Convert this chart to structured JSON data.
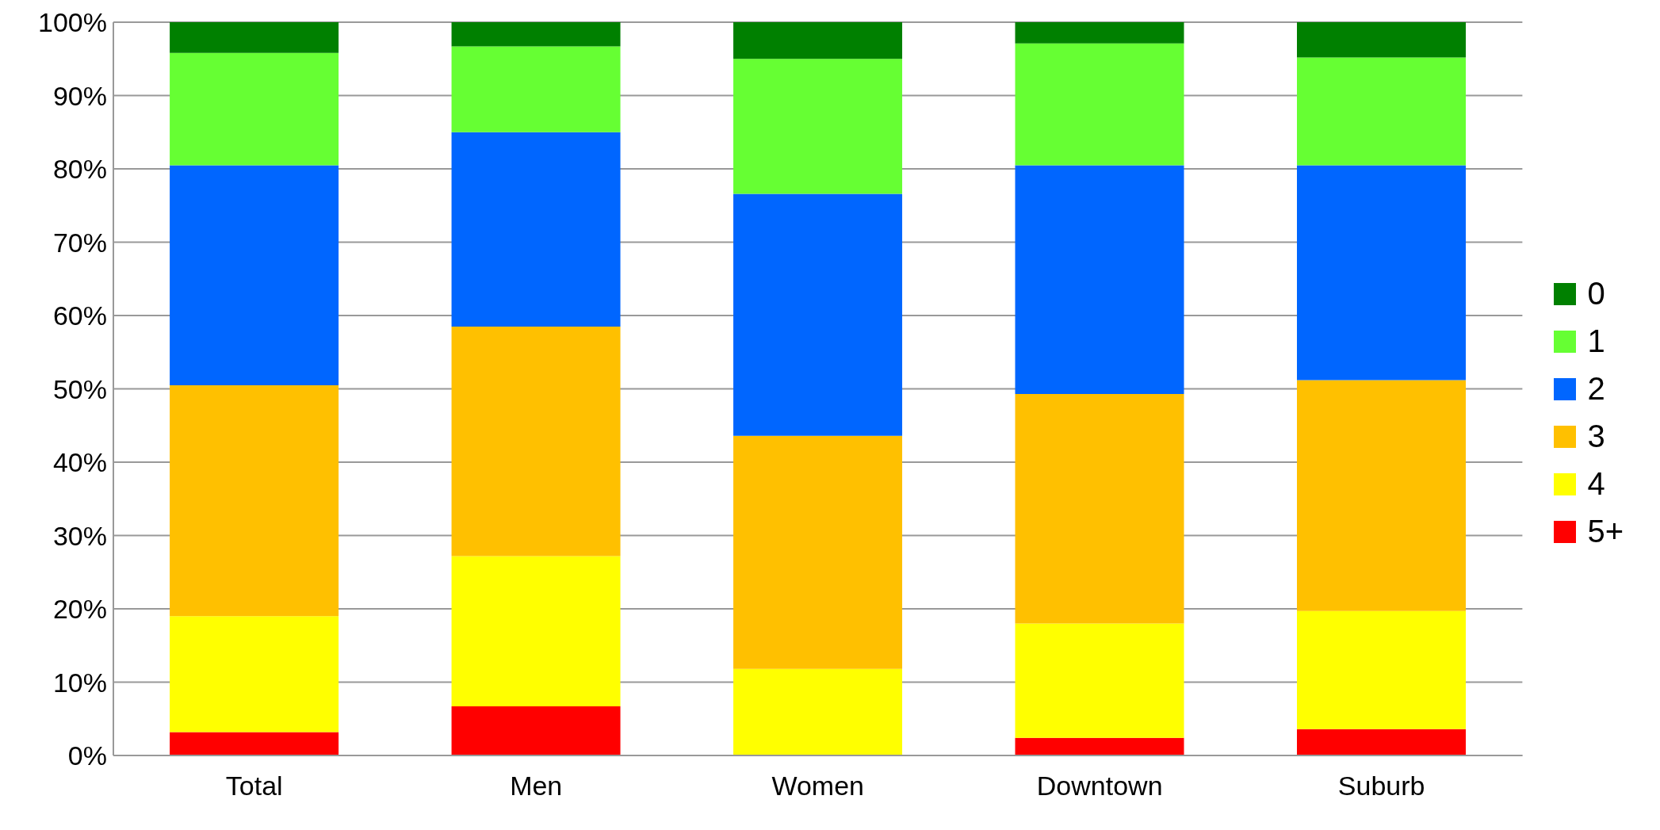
{
  "chart_data": {
    "type": "bar",
    "stacked": true,
    "categories": [
      "Total",
      "Men",
      "Women",
      "Downtown",
      "Suburb"
    ],
    "series": [
      {
        "name": "5+",
        "color": "#ff0000",
        "values": [
          3.2,
          6.7,
          0,
          2.4,
          3.6
        ]
      },
      {
        "name": "4",
        "color": "#ffff00",
        "values": [
          15.8,
          20.5,
          11.8,
          15.6,
          16.1
        ]
      },
      {
        "name": "3",
        "color": "#ffc000",
        "values": [
          31.5,
          31.3,
          31.8,
          31.3,
          31.5
        ]
      },
      {
        "name": "2",
        "color": "#0066ff",
        "values": [
          30.0,
          26.5,
          33.0,
          31.2,
          29.3
        ]
      },
      {
        "name": "1",
        "color": "#66ff33",
        "values": [
          15.3,
          11.7,
          18.4,
          16.6,
          14.7
        ]
      },
      {
        "name": "0",
        "color": "#008000",
        "values": [
          4.2,
          3.3,
          5.0,
          2.9,
          4.8
        ]
      }
    ],
    "ylim": [
      0,
      100
    ],
    "yticks": [
      {
        "value": 0,
        "label": "0%"
      },
      {
        "value": 10,
        "label": "10%"
      },
      {
        "value": 20,
        "label": "20%"
      },
      {
        "value": 30,
        "label": "30%"
      },
      {
        "value": 40,
        "label": "40%"
      },
      {
        "value": 50,
        "label": "50%"
      },
      {
        "value": 60,
        "label": "60%"
      },
      {
        "value": 70,
        "label": "70%"
      },
      {
        "value": 80,
        "label": "80%"
      },
      {
        "value": 90,
        "label": "90%"
      },
      {
        "value": 100,
        "label": "100%"
      }
    ],
    "grid": "y",
    "legend": "right"
  }
}
